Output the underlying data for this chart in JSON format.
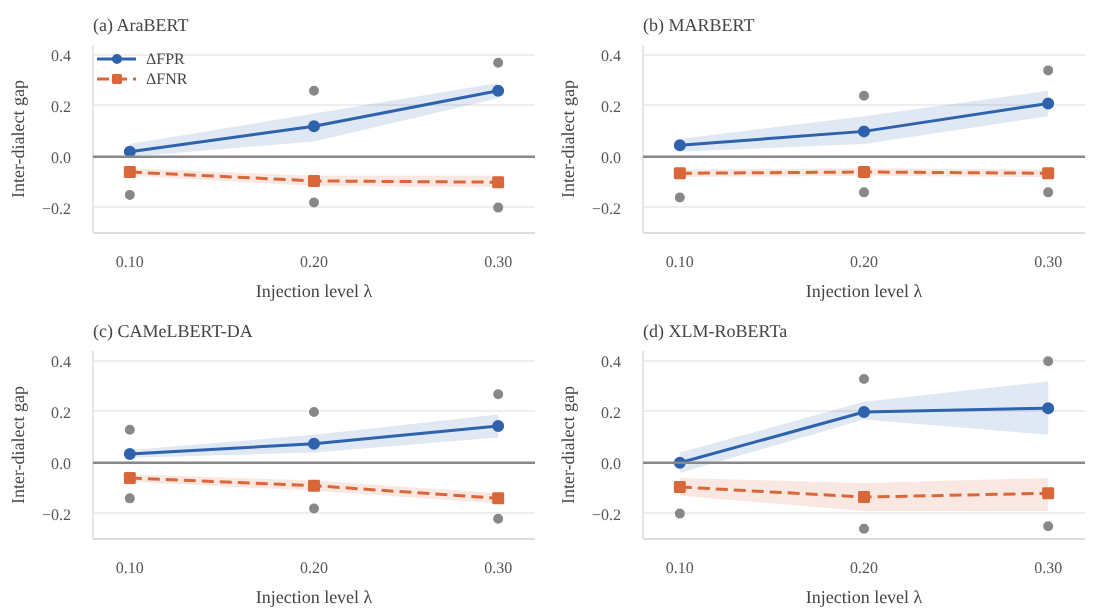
{
  "chart_data": [
    {
      "type": "line",
      "title": "(a) AraBERT",
      "xlabel": "Injection level λ",
      "ylabel": "Inter-dialect gap",
      "x": [
        0.1,
        0.2,
        0.3
      ],
      "xlim": [
        0.08,
        0.32
      ],
      "xticks": [
        {
          "value": 0.1,
          "label": "0.10"
        },
        {
          "value": 0.2,
          "label": "0.20"
        },
        {
          "value": 0.3,
          "label": "0.30"
        }
      ],
      "ylim": [
        -0.3,
        0.44
      ],
      "yticks": [
        {
          "value": -0.2,
          "label": "−0.2"
        },
        {
          "value": 0,
          "label": "0.0"
        },
        {
          "value": 0.2,
          "label": "0.2"
        },
        {
          "value": 0.4,
          "label": "0.4"
        }
      ],
      "grid": "y",
      "legend": "top left",
      "ref_lines": [
        {
          "axis": "y",
          "value": 0,
          "color": "#888888"
        }
      ],
      "series": [
        {
          "name": "ΔFPR",
          "color": "#2e62ad",
          "marker": "circle",
          "line_style": "solid",
          "values": [
            0.02,
            0.12,
            0.26
          ],
          "lower": [
            0.0,
            0.06,
            0.23
          ],
          "upper": [
            0.05,
            0.17,
            0.29
          ]
        },
        {
          "name": "ΔFNR",
          "color": "#d9673a",
          "marker": "square",
          "line_style": "dashed",
          "values": [
            -0.06,
            -0.095,
            -0.1
          ],
          "lower": [
            -0.075,
            -0.115,
            -0.12
          ],
          "upper": [
            -0.045,
            -0.075,
            -0.075
          ]
        },
        {
          "type": "scatter",
          "color": "#888888",
          "marker": "circle",
          "x": [
            0.1,
            0.2,
            0.2,
            0.3,
            0.3
          ],
          "values": [
            -0.15,
            0.26,
            -0.18,
            0.37,
            -0.2
          ]
        }
      ]
    },
    {
      "type": "line",
      "title": "(b) MARBERT",
      "xlabel": "Injection level λ",
      "ylabel": "Inter-dialect gap",
      "x": [
        0.1,
        0.2,
        0.3
      ],
      "xlim": [
        0.08,
        0.32
      ],
      "xticks": [
        {
          "value": 0.1,
          "label": "0.10"
        },
        {
          "value": 0.2,
          "label": "0.20"
        },
        {
          "value": 0.3,
          "label": "0.30"
        }
      ],
      "ylim": [
        -0.3,
        0.44
      ],
      "yticks": [
        {
          "value": -0.2,
          "label": "−0.2"
        },
        {
          "value": 0,
          "label": "0.0"
        },
        {
          "value": 0.2,
          "label": "0.2"
        },
        {
          "value": 0.4,
          "label": "0.4"
        }
      ],
      "grid": "y",
      "legend": false,
      "ref_lines": [
        {
          "axis": "y",
          "value": 0,
          "color": "#888888"
        }
      ],
      "series": [
        {
          "color": "#2e62ad",
          "marker": "circle",
          "line_style": "solid",
          "values": [
            0.045,
            0.1,
            0.21
          ],
          "lower": [
            0.02,
            0.05,
            0.16
          ],
          "upper": [
            0.07,
            0.16,
            0.26
          ]
        },
        {
          "color": "#d9673a",
          "marker": "square",
          "line_style": "dashed",
          "values": [
            -0.065,
            -0.06,
            -0.065
          ],
          "lower": [
            -0.08,
            -0.075,
            -0.08
          ],
          "upper": [
            -0.05,
            -0.045,
            -0.05
          ]
        },
        {
          "type": "scatter",
          "color": "#888888",
          "marker": "circle",
          "x": [
            0.1,
            0.2,
            0.2,
            0.3,
            0.3
          ],
          "values": [
            -0.16,
            0.24,
            -0.14,
            0.34,
            -0.14
          ]
        }
      ]
    },
    {
      "type": "line",
      "title": "(c) CAMeLBERT-DA",
      "xlabel": "Injection level λ",
      "ylabel": "Inter-dialect gap",
      "x": [
        0.1,
        0.2,
        0.3
      ],
      "xlim": [
        0.08,
        0.32
      ],
      "xticks": [
        {
          "value": 0.1,
          "label": "0.10"
        },
        {
          "value": 0.2,
          "label": "0.20"
        },
        {
          "value": 0.3,
          "label": "0.30"
        }
      ],
      "ylim": [
        -0.3,
        0.44
      ],
      "yticks": [
        {
          "value": -0.2,
          "label": "−0.2"
        },
        {
          "value": 0,
          "label": "0.0"
        },
        {
          "value": 0.2,
          "label": "0.2"
        },
        {
          "value": 0.4,
          "label": "0.4"
        }
      ],
      "grid": "y",
      "legend": false,
      "ref_lines": [
        {
          "axis": "y",
          "value": 0,
          "color": "#888888"
        }
      ],
      "series": [
        {
          "color": "#2e62ad",
          "marker": "circle",
          "line_style": "solid",
          "values": [
            0.035,
            0.075,
            0.145
          ],
          "lower": [
            0.02,
            0.04,
            0.1
          ],
          "upper": [
            0.05,
            0.11,
            0.19
          ]
        },
        {
          "color": "#d9673a",
          "marker": "square",
          "line_style": "dashed",
          "values": [
            -0.06,
            -0.09,
            -0.14
          ],
          "lower": [
            -0.075,
            -0.11,
            -0.16
          ],
          "upper": [
            -0.045,
            -0.07,
            -0.12
          ]
        },
        {
          "type": "scatter",
          "color": "#888888",
          "marker": "circle",
          "x": [
            0.1,
            0.1,
            0.2,
            0.2,
            0.3,
            0.3
          ],
          "values": [
            0.13,
            -0.14,
            0.2,
            -0.18,
            0.27,
            -0.22
          ]
        }
      ]
    },
    {
      "type": "line",
      "title": "(d) XLM-RoBERTa",
      "xlabel": "Injection level λ",
      "ylabel": "Inter-dialect gap",
      "x": [
        0.1,
        0.2,
        0.3
      ],
      "xlim": [
        0.08,
        0.32
      ],
      "xticks": [
        {
          "value": 0.1,
          "label": "0.10"
        },
        {
          "value": 0.2,
          "label": "0.20"
        },
        {
          "value": 0.3,
          "label": "0.30"
        }
      ],
      "ylim": [
        -0.3,
        0.44
      ],
      "yticks": [
        {
          "value": -0.2,
          "label": "−0.2"
        },
        {
          "value": 0,
          "label": "0.0"
        },
        {
          "value": 0.2,
          "label": "0.2"
        },
        {
          "value": 0.4,
          "label": "0.4"
        }
      ],
      "grid": "y",
      "legend": false,
      "ref_lines": [
        {
          "axis": "y",
          "value": 0,
          "color": "#888888"
        }
      ],
      "series": [
        {
          "color": "#2e62ad",
          "marker": "circle",
          "line_style": "solid",
          "values": [
            0.0,
            0.2,
            0.215
          ],
          "lower": [
            -0.04,
            0.17,
            0.11
          ],
          "upper": [
            0.04,
            0.24,
            0.32
          ]
        },
        {
          "color": "#d9673a",
          "marker": "square",
          "line_style": "dashed",
          "values": [
            -0.095,
            -0.135,
            -0.12
          ],
          "lower": [
            -0.13,
            -0.19,
            -0.19
          ],
          "upper": [
            -0.06,
            -0.08,
            -0.06
          ]
        },
        {
          "type": "scatter",
          "color": "#888888",
          "marker": "circle",
          "x": [
            0.1,
            0.2,
            0.2,
            0.3,
            0.3
          ],
          "values": [
            -0.2,
            0.33,
            -0.26,
            0.4,
            -0.25
          ]
        }
      ]
    }
  ]
}
